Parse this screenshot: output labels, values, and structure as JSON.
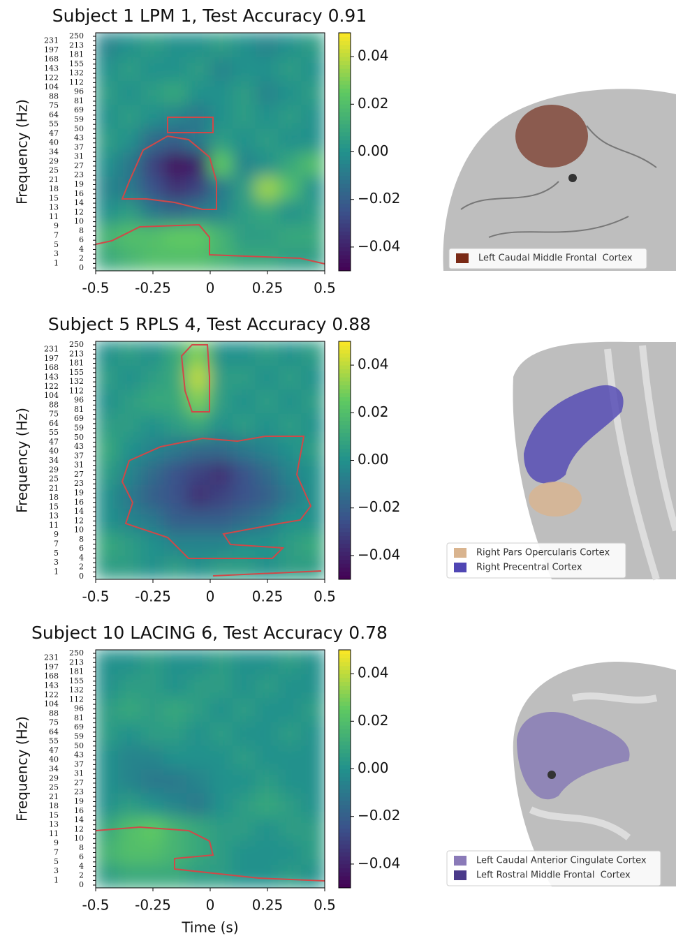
{
  "chart_data": [
    {
      "type": "heatmap",
      "title": "Subject 1 LPM 1, Test Accuracy 0.91",
      "ylabel": "Frequency (Hz)",
      "xlim": [
        -0.5,
        0.5
      ],
      "xticks": [
        -0.5,
        -0.25,
        0,
        0.25,
        0.5
      ],
      "yticks": [
        0,
        1,
        2,
        3,
        4,
        5,
        6,
        7,
        8,
        9,
        10,
        11,
        12,
        13,
        14,
        15,
        16,
        18,
        19,
        21,
        23,
        25,
        27,
        29,
        31,
        34,
        37,
        40,
        43,
        47,
        50,
        55,
        59,
        64,
        69,
        75,
        81,
        88,
        96,
        104,
        112,
        122,
        132,
        143,
        155,
        168,
        181,
        197,
        213,
        231,
        250
      ],
      "colormap": "viridis",
      "clim": [
        -0.05,
        0.05
      ],
      "cticks": [
        0.04,
        0.02,
        {
          "value": 0,
          "label": "0.00"
        },
        {
          "value": -0.02,
          "label": "−0.02"
        },
        {
          "value": -0.04,
          "label": "−0.04"
        }
      ],
      "z": [
        [
          0.01,
          0.015,
          0.02,
          0.02,
          0.02,
          0.015,
          0.01,
          0.01,
          0.005,
          0.005
        ],
        [
          0.015,
          0.02,
          0.02,
          0.025,
          0.025,
          0.015,
          0.005,
          0.005,
          0.01,
          0.01
        ],
        [
          0,
          0.005,
          -0.01,
          -0.015,
          -0.01,
          -0.005,
          0.005,
          0.01,
          0,
          0.005
        ],
        [
          -0.005,
          -0.01,
          -0.025,
          -0.035,
          -0.03,
          -0.01,
          0.005,
          0.035,
          0.02,
          0
        ],
        [
          0,
          -0.01,
          -0.03,
          -0.045,
          -0.04,
          0.025,
          -0.005,
          0,
          0.01,
          0.02
        ],
        [
          0.005,
          0,
          -0.015,
          -0.02,
          -0.01,
          0.005,
          0,
          0.005,
          0,
          0
        ],
        [
          0,
          0.005,
          0,
          -0.005,
          -0.01,
          0,
          0.005,
          0,
          0.005,
          0
        ],
        [
          0.005,
          0,
          0.005,
          0.01,
          0,
          0,
          0.005,
          -0.005,
          0,
          0.005
        ],
        [
          0,
          0.005,
          0,
          0,
          0.005,
          -0.005,
          0,
          0,
          0.005,
          0
        ],
        [
          -0.005,
          0,
          0.005,
          0,
          0,
          0.005,
          0,
          -0.005,
          0,
          0.005
        ]
      ]
    },
    {
      "type": "heatmap",
      "title": "Subject 5 RPLS 4, Test Accuracy 0.88",
      "ylabel": "Frequency (Hz)",
      "xlim": [
        -0.5,
        0.5
      ],
      "xticks": [
        -0.5,
        -0.25,
        0,
        0.25,
        0.5
      ],
      "yticks": [
        0,
        1,
        2,
        3,
        4,
        5,
        6,
        7,
        8,
        9,
        10,
        11,
        12,
        13,
        14,
        15,
        16,
        18,
        19,
        21,
        23,
        25,
        27,
        29,
        31,
        34,
        37,
        40,
        43,
        47,
        50,
        55,
        59,
        64,
        69,
        75,
        81,
        88,
        96,
        104,
        112,
        122,
        132,
        143,
        155,
        168,
        181,
        197,
        213,
        231,
        250
      ],
      "colormap": "viridis",
      "clim": [
        -0.05,
        0.05
      ],
      "cticks": [
        0.04,
        0.02,
        {
          "value": 0,
          "label": "0.00"
        },
        {
          "value": -0.02,
          "label": "−0.02"
        },
        {
          "value": -0.04,
          "label": "−0.04"
        }
      ],
      "z": [
        [
          0.005,
          0.005,
          0,
          0.005,
          0,
          0.005,
          0.005,
          0,
          0.005,
          0.005
        ],
        [
          0.01,
          0.005,
          0,
          -0.005,
          -0.005,
          -0.005,
          0,
          0,
          0.005,
          0.01
        ],
        [
          0,
          -0.005,
          -0.01,
          -0.02,
          -0.02,
          -0.02,
          -0.015,
          -0.01,
          0,
          0
        ],
        [
          0,
          -0.01,
          -0.02,
          -0.025,
          -0.035,
          -0.03,
          -0.025,
          -0.02,
          -0.01,
          0
        ],
        [
          0.005,
          -0.005,
          -0.015,
          -0.025,
          -0.03,
          -0.035,
          -0.025,
          -0.015,
          -0.005,
          0
        ],
        [
          0.01,
          0,
          -0.005,
          -0.01,
          -0.015,
          -0.015,
          -0.01,
          -0.005,
          0,
          0.005
        ],
        [
          0.005,
          0.005,
          0,
          0.005,
          0.01,
          0,
          0.005,
          0,
          0.005,
          0
        ],
        [
          0,
          0.005,
          0.01,
          0.01,
          0.03,
          0.005,
          0,
          0.005,
          0,
          0.005
        ],
        [
          0.005,
          0,
          0.005,
          0.01,
          0.04,
          0.005,
          0.005,
          0,
          0.005,
          0
        ],
        [
          0,
          0.005,
          0,
          0.01,
          0.03,
          0,
          0,
          0.005,
          0,
          0.005
        ]
      ]
    },
    {
      "type": "heatmap",
      "title": "Subject 10 LACING 6, Test Accuracy 0.78",
      "ylabel": "Frequency (Hz)",
      "xlabel": "Time (s)",
      "xlim": [
        -0.5,
        0.5
      ],
      "xticks": [
        -0.5,
        -0.25,
        0,
        0.25,
        0.5
      ],
      "yticks": [
        0,
        1,
        2,
        3,
        4,
        5,
        6,
        7,
        8,
        9,
        10,
        11,
        12,
        13,
        14,
        15,
        16,
        18,
        19,
        21,
        23,
        25,
        27,
        29,
        31,
        34,
        37,
        40,
        43,
        47,
        50,
        55,
        59,
        64,
        69,
        75,
        81,
        88,
        96,
        104,
        112,
        122,
        132,
        143,
        155,
        168,
        181,
        197,
        213,
        231,
        250
      ],
      "colormap": "viridis",
      "clim": [
        -0.05,
        0.05
      ],
      "cticks": [
        0.04,
        0.02,
        {
          "value": 0,
          "label": "0.00"
        },
        {
          "value": -0.02,
          "label": "−0.02"
        },
        {
          "value": -0.04,
          "label": "−0.04"
        }
      ],
      "z": [
        [
          0.005,
          0.01,
          0.01,
          0.01,
          0.005,
          0.005,
          0,
          0,
          0.005,
          0
        ],
        [
          0.015,
          0.02,
          0.02,
          0.015,
          0.01,
          0.005,
          0,
          0,
          0,
          0.005
        ],
        [
          0.01,
          0.02,
          0.025,
          0.015,
          0.01,
          0.005,
          0.005,
          0,
          0.005,
          0.005
        ],
        [
          0,
          0.005,
          0,
          -0.005,
          -0.01,
          0,
          0.005,
          0.01,
          0.005,
          0
        ],
        [
          0,
          -0.005,
          -0.01,
          -0.01,
          -0.005,
          0,
          0,
          0.005,
          0,
          0
        ],
        [
          0,
          -0.005,
          -0.005,
          0,
          0,
          0,
          0.005,
          0,
          0,
          0
        ],
        [
          0.005,
          0,
          0.005,
          0.005,
          0,
          0.005,
          0,
          0,
          0.005,
          0
        ],
        [
          0.005,
          0.01,
          0.005,
          0.01,
          0.005,
          0,
          0.005,
          0,
          0,
          0.005
        ],
        [
          0,
          0.005,
          0.005,
          0,
          0.005,
          0.005,
          0,
          0.005,
          0,
          0
        ],
        [
          0,
          0,
          0.005,
          0,
          0,
          0.005,
          0,
          0,
          0.005,
          0
        ]
      ]
    }
  ],
  "brains": [
    {
      "legend": [
        {
          "label": "Left Caudal Middle Frontal  Cortex",
          "color": "#7a2a16"
        }
      ]
    },
    {
      "legend": [
        {
          "label": "Right Pars Opercularis Cortex",
          "color": "#d9b48f"
        },
        {
          "label": "Right Precentral Cortex",
          "color": "#5046b4"
        }
      ]
    },
    {
      "legend": [
        {
          "label": "Left Caudal Anterior Cingulate Cortex",
          "color": "#8a7ab8"
        },
        {
          "label": "Left Rostral Middle Frontal  Cortex",
          "color": "#4a3a8a"
        }
      ]
    }
  ]
}
